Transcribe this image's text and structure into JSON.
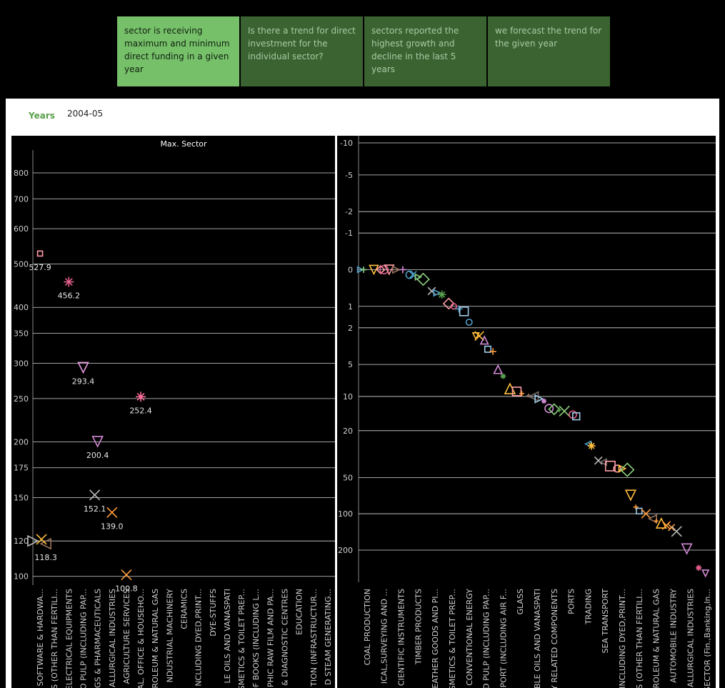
{
  "tabs": [
    {
      "label": "sector is receiving maximum and minimum direct funding in a given year",
      "active": true
    },
    {
      "label": "Is there a trend for direct investment for the individual sector?",
      "active": false
    },
    {
      "label": "sectors reported the highest growth and decline in the last 5 years",
      "active": false
    },
    {
      "label": "we forecast the trend for the given year",
      "active": false
    }
  ],
  "filter": {
    "label": "Years",
    "value": "2004-05"
  },
  "colors": {
    "tab_active": "#77c06a",
    "tab_inactive": "#3b6332",
    "accent": "#5aa04a"
  },
  "chart_data": [
    {
      "type": "scatter",
      "title": "Max. Sector",
      "y_scale": "log",
      "ylim": [
        97,
        900
      ],
      "y_ticks": [
        100,
        120,
        150,
        175,
        200,
        250,
        300,
        350,
        400,
        500,
        600,
        700,
        800
      ],
      "grid": true,
      "categories": [
        "SOFTWARE & HARDWA...",
        "S (OTHER THAN FERTILI...",
        "ELECTRICAL EQUIPMENTS",
        "O PULP (INCLUDING PAP...",
        "GS & PHARMACEUTICALS",
        "ALLURGICAL INDUSTRIES",
        "AGRICULTURE SERVICES",
        "AL, OFFICE & HOUSEHO...",
        "ROLEUM & NATURAL GAS",
        "NDUSTRIAL MACHINERY",
        "CERAMICS",
        "NCLUDING DYED,PRINT...",
        "DYE-STUFFS",
        "LE OILS AND VANASPATI",
        "SMETICS & TOILET PREP...",
        "OF BOOKS (INCLUDING L...",
        "PHIC RAW FILM AND PA...",
        "& DIAGNOSTIC CENTRES",
        "EDUCATION",
        "TION (INFRASTRUCTUR...",
        "D STEAM GENERATING..."
      ],
      "points": [
        {
          "x": 0.5,
          "y": 527.9,
          "label": "527.9",
          "marker": "square",
          "color": "#ff9da7"
        },
        {
          "x": 2.5,
          "y": 456.2,
          "label": "456.2",
          "marker": "asterisk",
          "color": "#e15f8c"
        },
        {
          "x": 3.5,
          "y": 293.4,
          "label": "293.4",
          "marker": "triangle-down",
          "color": "#e79be3"
        },
        {
          "x": 7.5,
          "y": 252.4,
          "label": "252.4",
          "marker": "asterisk",
          "color": "#ff6f9a"
        },
        {
          "x": 4.5,
          "y": 200.4,
          "label": "200.4",
          "marker": "triangle-down",
          "color": "#d38ad6"
        },
        {
          "x": 4.3,
          "y": 152.1,
          "label": "152.1",
          "marker": "x",
          "color": "#bbbbbb"
        },
        {
          "x": 5.5,
          "y": 139.0,
          "label": "139.0",
          "marker": "x",
          "color": "#ff9d3c"
        },
        {
          "x": 0.9,
          "y": 118.3,
          "label": "118.3",
          "marker": "triangle-left",
          "color": "#9c755f"
        },
        {
          "x": 0.0,
          "y": 120,
          "label": "",
          "marker": "triangle-right",
          "color": "#bbbbbb"
        },
        {
          "x": 0.6,
          "y": 121,
          "label": "",
          "marker": "x",
          "color": "#ffbf3c"
        },
        {
          "x": 6.5,
          "y": 100.8,
          "label": "100.8",
          "marker": "x",
          "color": "#ff9d3c"
        }
      ]
    },
    {
      "type": "scatter",
      "title": "",
      "y_scale": "symlog",
      "y_ticks": [
        -10,
        -5,
        -2,
        -1,
        0,
        1,
        2,
        5,
        10,
        20,
        50,
        100,
        200
      ],
      "grid": true,
      "categories": [
        "COAL PRODUCTION",
        "ICAL,SURVEYING AND ...",
        "CIENTIFIC INSTRUMENTS",
        "TIMBER PRODUCTS",
        "EATHER GOODS AND PI...",
        "SMETICS & TOILET PREP...",
        "CONVENTIONAL ENERGY",
        "D PULP (INCLUDING PAP...",
        "SPORT (INCLUDING AIR F...",
        "GLASS",
        "BLE OILS AND VANASPATI",
        "Y RELATED COMPONENTS",
        "PORTS",
        "TRADING",
        "SEA TRANSPORT",
        "INCLUDING DYED,PRINT...",
        "S (OTHER THAN FERTILI...",
        "ROLEUM & NATURAL GAS",
        "AUTOMOBILE INDUSTRY",
        "ALLURGICAL INDUSTRIES",
        "SECTOR (Fin.,Banking,In..."
      ],
      "points": [
        {
          "x": 0.1,
          "y": 0,
          "marker": "triangle-right",
          "color": "#4e9ec8"
        },
        {
          "x": 0.3,
          "y": 0,
          "marker": "plus",
          "color": "#8cd17d"
        },
        {
          "x": 0.9,
          "y": 0,
          "marker": "triangle-down",
          "color": "#ffbf3c"
        },
        {
          "x": 1.3,
          "y": 0,
          "marker": "diamond",
          "color": "#ff9da7"
        },
        {
          "x": 1.5,
          "y": 0,
          "marker": "circle",
          "color": "#e15f8c"
        },
        {
          "x": 1.8,
          "y": 0,
          "marker": "triangle-down",
          "color": "#ff9da7"
        },
        {
          "x": 2.2,
          "y": 0,
          "marker": "triangle-right",
          "color": "#9c755f"
        },
        {
          "x": 2.6,
          "y": 0,
          "marker": "plus",
          "color": "#d38ad6"
        },
        {
          "x": 3.0,
          "y": 0.1,
          "marker": "circle",
          "color": "#4e9ec8"
        },
        {
          "x": 3.2,
          "y": 0.1,
          "marker": "x",
          "color": "#4e9ec8"
        },
        {
          "x": 3.5,
          "y": 0.15,
          "marker": "triangle-right",
          "color": "#8cd17d"
        },
        {
          "x": 3.8,
          "y": 0.2,
          "marker": "diamond",
          "color": "#8cd17d"
        },
        {
          "x": 4.3,
          "y": 0.5,
          "marker": "x",
          "color": "#bbbbbb"
        },
        {
          "x": 4.6,
          "y": 0.55,
          "marker": "triangle-right",
          "color": "#4e9ec8"
        },
        {
          "x": 4.9,
          "y": 0.6,
          "marker": "asterisk",
          "color": "#59a14f"
        },
        {
          "x": 5.3,
          "y": 0.9,
          "marker": "diamond",
          "color": "#ff9da7"
        },
        {
          "x": 5.6,
          "y": 1.0,
          "marker": "circle",
          "color": "#e15f8c"
        },
        {
          "x": 5.9,
          "y": 1.1,
          "marker": "plus",
          "color": "#4e9ec8"
        },
        {
          "x": 6.2,
          "y": 1.2,
          "marker": "square",
          "color": "#a0cbe8"
        },
        {
          "x": 6.5,
          "y": 1.7,
          "marker": "circle",
          "color": "#4e9ec8"
        },
        {
          "x": 6.9,
          "y": 2.5,
          "marker": "triangle-down",
          "color": "#ffbf3c"
        },
        {
          "x": 7.1,
          "y": 2.5,
          "marker": "x",
          "color": "#ffbf3c"
        },
        {
          "x": 7.4,
          "y": 2.8,
          "marker": "triangle-up",
          "color": "#d38ad6"
        },
        {
          "x": 7.6,
          "y": 3.5,
          "marker": "square",
          "color": "#a0cbe8"
        },
        {
          "x": 7.9,
          "y": 3.7,
          "marker": "plus",
          "color": "#ff9d3c"
        },
        {
          "x": 8.2,
          "y": 5.6,
          "marker": "triangle-up",
          "color": "#d38ad6"
        },
        {
          "x": 8.5,
          "y": 6.5,
          "marker": "asterisk",
          "color": "#59a14f"
        },
        {
          "x": 8.9,
          "y": 8.5,
          "marker": "triangle-up",
          "color": "#ffbf3c"
        },
        {
          "x": 9.3,
          "y": 9.0,
          "marker": "square",
          "color": "#ff9da7"
        },
        {
          "x": 9.6,
          "y": 9.4,
          "marker": "plus",
          "color": "#ff9d3c"
        },
        {
          "x": 10.0,
          "y": 9.8,
          "marker": "plus",
          "color": "#9c755f"
        },
        {
          "x": 10.3,
          "y": 10.0,
          "marker": "triangle-left",
          "color": "#79706e"
        },
        {
          "x": 10.6,
          "y": 10.5,
          "marker": "triangle-right",
          "color": "#a0cbe8"
        },
        {
          "x": 10.9,
          "y": 11.0,
          "marker": "asterisk",
          "color": "#d38ad6"
        },
        {
          "x": 11.2,
          "y": 12.8,
          "marker": "circle",
          "color": "#d38ad6"
        },
        {
          "x": 11.5,
          "y": 13.0,
          "marker": "diamond",
          "color": "#8cd17d"
        },
        {
          "x": 11.8,
          "y": 13.2,
          "marker": "plus",
          "color": "#59a14f"
        },
        {
          "x": 12.1,
          "y": 13.5,
          "marker": "x",
          "color": "#8cd17d"
        },
        {
          "x": 12.6,
          "y": 14.5,
          "marker": "circle",
          "color": "#e15f8c"
        },
        {
          "x": 12.8,
          "y": 15.0,
          "marker": "square",
          "color": "#a0cbe8"
        },
        {
          "x": 13.5,
          "y": 26,
          "marker": "triangle-left",
          "color": "#4e9ec8"
        },
        {
          "x": 13.7,
          "y": 27,
          "marker": "asterisk",
          "color": "#ffbf3c"
        },
        {
          "x": 14.1,
          "y": 36,
          "marker": "x",
          "color": "#bbbbbb"
        },
        {
          "x": 14.4,
          "y": 37,
          "marker": "triangle-left",
          "color": "#79706e"
        },
        {
          "x": 14.8,
          "y": 40,
          "marker": "square",
          "color": "#ff9da7"
        },
        {
          "x": 15.2,
          "y": 42,
          "marker": "circle",
          "color": "#ff9da7"
        },
        {
          "x": 15.5,
          "y": 42,
          "marker": "triangle-right",
          "color": "#ffbf3c"
        },
        {
          "x": 15.8,
          "y": 43,
          "marker": "diamond",
          "color": "#8cd17d"
        },
        {
          "x": 16.0,
          "y": 70,
          "marker": "triangle-down",
          "color": "#ffbf3c"
        },
        {
          "x": 16.3,
          "y": 88,
          "marker": "plus",
          "color": "#ff9d3c"
        },
        {
          "x": 16.5,
          "y": 95,
          "marker": "square",
          "color": "#a0cbe8"
        },
        {
          "x": 16.9,
          "y": 100,
          "marker": "x",
          "color": "#ff9d3c"
        },
        {
          "x": 17.3,
          "y": 110,
          "marker": "triangle-left",
          "color": "#9c755f"
        },
        {
          "x": 17.5,
          "y": 115,
          "marker": "plus",
          "color": "#ff9d3c"
        },
        {
          "x": 17.8,
          "y": 120,
          "marker": "triangle-up",
          "color": "#ffbf3c"
        },
        {
          "x": 18.1,
          "y": 125,
          "marker": "x",
          "color": "#ff9d3c"
        },
        {
          "x": 18.4,
          "y": 130,
          "marker": "x",
          "color": "#ff9d3c"
        },
        {
          "x": 18.7,
          "y": 140,
          "marker": "x",
          "color": "#bbbbbb"
        },
        {
          "x": 19.3,
          "y": 195,
          "marker": "triangle-down",
          "color": "#d38ad6"
        },
        {
          "x": 20.0,
          "y": 280,
          "marker": "asterisk",
          "color": "#e15f8c"
        },
        {
          "x": 20.4,
          "y": 310,
          "marker": "triangle-down",
          "color": "#d38ad6"
        }
      ]
    }
  ]
}
